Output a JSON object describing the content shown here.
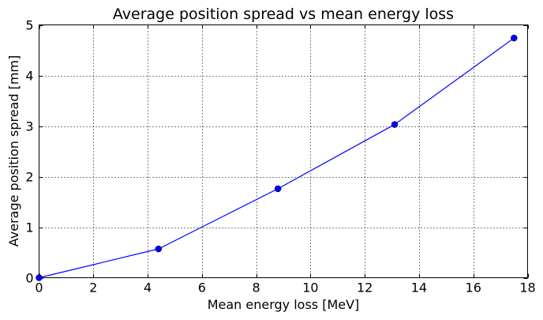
{
  "chart_data": {
    "type": "line",
    "title": "Average position spread vs mean energy loss",
    "xlabel": "Mean energy loss [MeV]",
    "ylabel": "Average position spread [mm]",
    "xlim": [
      0,
      18
    ],
    "ylim": [
      0,
      5
    ],
    "xticks": [
      0,
      2,
      4,
      6,
      8,
      10,
      12,
      14,
      16,
      18
    ],
    "yticks": [
      0,
      1,
      2,
      3,
      4,
      5
    ],
    "grid": true,
    "series": [
      {
        "color": "#0000ff",
        "marker": "circle",
        "points": [
          {
            "x": 0.0,
            "y": 0.0
          },
          {
            "x": 4.4,
            "y": 0.57
          },
          {
            "x": 8.8,
            "y": 1.76
          },
          {
            "x": 13.1,
            "y": 3.03
          },
          {
            "x": 17.5,
            "y": 4.74
          }
        ]
      }
    ]
  }
}
